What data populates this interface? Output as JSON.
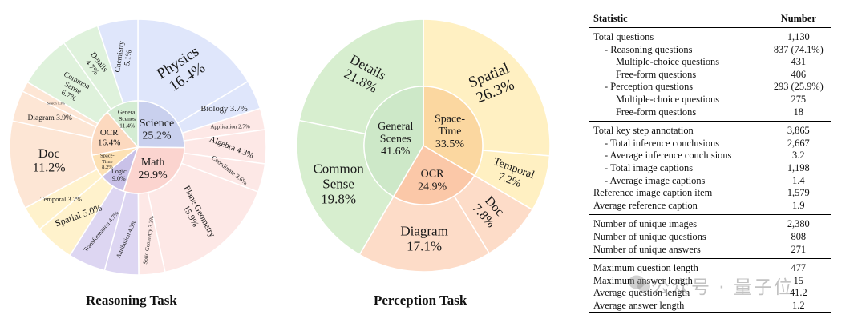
{
  "colors": {
    "science": "#c9d0ee",
    "math": "#fbd4cf",
    "general_scenes": "#d4ecd3",
    "ocr": "#fcd9bf",
    "space_time": "#fde1b4",
    "logic": "#c9c1e8",
    "science_outer": "#dfe6fb",
    "math_outer": "#fde8e6",
    "general_outer": "#dff2dc",
    "ocr_outer": "#fde6d5",
    "space_outer": "#fff2cc",
    "logic_outer": "#ddd6f2",
    "p_general": "#cde8c8",
    "p_general_outer": "#d7eecf",
    "p_space": "#fbd7a0",
    "p_space_outer": "#fff0c2",
    "p_ocr": "#fbc8a8",
    "p_ocr_outer": "#fddcc8"
  },
  "chart_data": [
    {
      "type": "pie",
      "title": "Reasoning Task",
      "inner": [
        {
          "label": "Science",
          "value": 25.2,
          "display": "25.2%"
        },
        {
          "label": "Math",
          "value": 29.9,
          "display": "29.9%"
        },
        {
          "label": "Logic",
          "value": 9.0,
          "display": "9.0%"
        },
        {
          "label": "Space-Time",
          "value": 8.2,
          "display": "8.2%"
        },
        {
          "label": "OCR",
          "value": 16.4,
          "display": "16.4%"
        },
        {
          "label": "General Scenes",
          "value": 11.4,
          "display": "11.4%"
        }
      ],
      "outer": [
        {
          "label": "Physics",
          "value": 16.4,
          "display": "16.4%",
          "parent": "Science"
        },
        {
          "label": "Biology",
          "value": 3.7,
          "display": "3.7%",
          "parent": "Science"
        },
        {
          "label": "Application",
          "value": 2.7,
          "display": "2.7%",
          "parent": "Math"
        },
        {
          "label": "Algebra",
          "value": 4.3,
          "display": "4.3%",
          "parent": "Math"
        },
        {
          "label": "Coordinate",
          "value": 3.6,
          "display": "3.6%",
          "parent": "Math"
        },
        {
          "label": "Plane Geometry",
          "value": 15.9,
          "display": "15.9%",
          "parent": "Math"
        },
        {
          "label": "Solid Geometry",
          "value": 3.3,
          "display": "3.3%",
          "parent": "Math"
        },
        {
          "label": "Attribution",
          "value": 4.3,
          "display": "4.3%",
          "parent": "Logic"
        },
        {
          "label": "Transformation",
          "value": 4.7,
          "display": "4.7%",
          "parent": "Logic"
        },
        {
          "label": "Spatial",
          "value": 5.0,
          "display": "5.0%",
          "parent": "Space-Time"
        },
        {
          "label": "Temporal",
          "value": 3.2,
          "display": "3.2%",
          "parent": "Space-Time"
        },
        {
          "label": "Doc",
          "value": 11.2,
          "display": "11.2%",
          "parent": "OCR"
        },
        {
          "label": "Diagram",
          "value": 3.9,
          "display": "3.9%",
          "parent": "OCR"
        },
        {
          "label": "Search",
          "value": 1.3,
          "display": "1.3%",
          "parent": "OCR"
        },
        {
          "label": "Common Sense",
          "value": 6.7,
          "display": "6.7%",
          "parent": "General Scenes"
        },
        {
          "label": "Details",
          "value": 4.7,
          "display": "4.7%",
          "parent": "General Scenes"
        },
        {
          "label": "Chemistry",
          "value": 5.1,
          "display": "5.1%",
          "parent": "Science"
        }
      ]
    },
    {
      "type": "pie",
      "title": "Perception Task",
      "inner": [
        {
          "label": "Space-Time",
          "value": 33.5,
          "display": "33.5%"
        },
        {
          "label": "OCR",
          "value": 24.9,
          "display": "24.9%"
        },
        {
          "label": "General Scenes",
          "value": 41.6,
          "display": "41.6%"
        }
      ],
      "outer": [
        {
          "label": "Spatial",
          "value": 26.3,
          "display": "26.3%",
          "parent": "Space-Time"
        },
        {
          "label": "Temporal",
          "value": 7.2,
          "display": "7.2%",
          "parent": "Space-Time"
        },
        {
          "label": "Doc",
          "value": 7.8,
          "display": "7.8%",
          "parent": "OCR"
        },
        {
          "label": "Diagram",
          "value": 17.1,
          "display": "17.1%",
          "parent": "OCR"
        },
        {
          "label": "Common Sense",
          "value": 19.8,
          "display": "19.8%",
          "parent": "General Scenes"
        },
        {
          "label": "Details",
          "value": 21.8,
          "display": "21.8%",
          "parent": "General Scenes"
        }
      ]
    }
  ],
  "table": {
    "headers": [
      "Statistic",
      "Number"
    ],
    "groups": [
      [
        {
          "label": "Total questions",
          "value": "1,130",
          "indent": 0
        },
        {
          "label": "- Reasoning questions",
          "value": "837 (74.1%)",
          "indent": 1
        },
        {
          "label": "Multiple-choice questions",
          "value": "431",
          "indent": 2
        },
        {
          "label": "Free-form questions",
          "value": "406",
          "indent": 2
        },
        {
          "label": "- Perception questions",
          "value": "293 (25.9%)",
          "indent": 1
        },
        {
          "label": "Multiple-choice questions",
          "value": "275",
          "indent": 2
        },
        {
          "label": "Free-form questions",
          "value": "18",
          "indent": 2
        }
      ],
      [
        {
          "label": "Total key step annotation",
          "value": "3,865",
          "indent": 0
        },
        {
          "label": "- Total inference conclusions",
          "value": "2,667",
          "indent": 1
        },
        {
          "label": "- Average inference conclusions",
          "value": "3.2",
          "indent": 1
        },
        {
          "label": "- Total image captions",
          "value": "1,198",
          "indent": 1
        },
        {
          "label": "- Average image captions",
          "value": "1.4",
          "indent": 1
        },
        {
          "label": "Reference image caption item",
          "value": "1,579",
          "indent": 0
        },
        {
          "label": "Average reference caption",
          "value": "1.9",
          "indent": 0
        }
      ],
      [
        {
          "label": "Number of unique images",
          "value": "2,380",
          "indent": 0
        },
        {
          "label": "Number of unique questions",
          "value": "808",
          "indent": 0
        },
        {
          "label": "Number of unique answers",
          "value": "271",
          "indent": 0
        }
      ],
      [
        {
          "label": "Maximum question length",
          "value": "477",
          "indent": 0
        },
        {
          "label": "Maximum answer length",
          "value": "15",
          "indent": 0
        },
        {
          "label": "Average question length",
          "value": "41.2",
          "indent": 0
        },
        {
          "label": "Average answer length",
          "value": "1.2",
          "indent": 0
        }
      ]
    ]
  },
  "watermark": "公众号 · 量子位"
}
